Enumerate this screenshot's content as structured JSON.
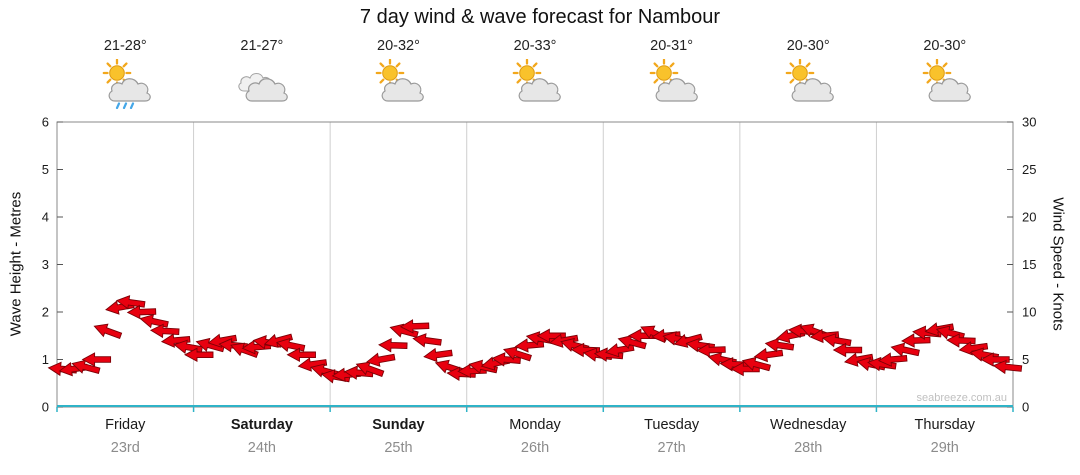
{
  "title": "7 day wind & wave forecast for Nambour",
  "watermark": "seabreeze.com.au",
  "days": [
    {
      "temp": "21-28°",
      "icon": "sun-cloud-rain",
      "name": "Friday",
      "date": "23rd",
      "bold": false
    },
    {
      "temp": "21-27°",
      "icon": "clouds",
      "name": "Saturday",
      "date": "24th",
      "bold": true
    },
    {
      "temp": "20-32°",
      "icon": "sun-cloud",
      "name": "Sunday",
      "date": "25th",
      "bold": true
    },
    {
      "temp": "20-33°",
      "icon": "sun-cloud",
      "name": "Monday",
      "date": "26th",
      "bold": false
    },
    {
      "temp": "20-31°",
      "icon": "sun-cloud",
      "name": "Tuesday",
      "date": "27th",
      "bold": false
    },
    {
      "temp": "20-30°",
      "icon": "sun-cloud",
      "name": "Wednesday",
      "date": "28th",
      "bold": false
    },
    {
      "temp": "20-30°",
      "icon": "sun-cloud",
      "name": "Thursday",
      "date": "29th",
      "bold": false
    }
  ],
  "chart_data": {
    "type": "line",
    "title": "7 day wind & wave forecast for Nambour",
    "x_categories_days": [
      "Friday",
      "Saturday",
      "Sunday",
      "Monday",
      "Tuesday",
      "Wednesday",
      "Thursday"
    ],
    "x_categories_dates": [
      "23rd",
      "24th",
      "25th",
      "26th",
      "27th",
      "28th",
      "29th"
    ],
    "left_axis": {
      "label": "Wave Height - Metres",
      "min": 0,
      "max": 6,
      "ticks": [
        0,
        1,
        2,
        3,
        4,
        5,
        6
      ]
    },
    "right_axis": {
      "label": "Wind Speed - Knots",
      "min": 0,
      "max": 30,
      "ticks": [
        0,
        5,
        10,
        15,
        20,
        25,
        30
      ]
    },
    "grid": "vertical-day-lines",
    "legend": "none",
    "series": [
      {
        "name": "Wave Height (m)",
        "type": "line",
        "color": "#2fb3c7",
        "x_days": [
          0,
          1,
          2,
          3,
          4,
          5,
          6,
          7
        ],
        "values": [
          0,
          0,
          0,
          0,
          0,
          0,
          0,
          0
        ]
      },
      {
        "name": "Wind Speed (knots)",
        "type": "wind-arrows",
        "color": "#e8000f",
        "point_format": [
          "day_offset",
          "knots",
          "direction_deg"
        ],
        "points": [
          [
            0.04,
            4,
            185
          ],
          [
            0.12,
            4,
            172
          ],
          [
            0.21,
            4.2,
            195
          ],
          [
            0.29,
            5,
            180
          ],
          [
            0.37,
            8,
            200
          ],
          [
            0.46,
            10.5,
            170
          ],
          [
            0.54,
            11,
            188
          ],
          [
            0.62,
            10,
            178
          ],
          [
            0.71,
            9,
            192
          ],
          [
            0.79,
            8,
            183
          ],
          [
            0.87,
            7,
            175
          ],
          [
            0.96,
            6.3,
            190
          ],
          [
            1.04,
            5.5,
            180
          ],
          [
            1.12,
            6.5,
            195
          ],
          [
            1.21,
            7,
            170
          ],
          [
            1.29,
            6.5,
            185
          ],
          [
            1.37,
            6,
            200
          ],
          [
            1.46,
            6.3,
            175
          ],
          [
            1.54,
            6.8,
            188
          ],
          [
            1.62,
            7,
            165
          ],
          [
            1.71,
            6.5,
            192
          ],
          [
            1.79,
            5.5,
            180
          ],
          [
            1.87,
            4.5,
            172
          ],
          [
            1.96,
            3.8,
            195
          ],
          [
            2.04,
            3.2,
            190
          ],
          [
            2.12,
            3.4,
            175
          ],
          [
            2.21,
            3.6,
            185
          ],
          [
            2.29,
            4,
            200
          ],
          [
            2.37,
            5,
            170
          ],
          [
            2.46,
            6.5,
            182
          ],
          [
            2.54,
            8,
            195
          ],
          [
            2.62,
            8.5,
            178
          ],
          [
            2.71,
            7,
            188
          ],
          [
            2.79,
            5.5,
            172
          ],
          [
            2.87,
            4.2,
            198
          ],
          [
            2.96,
            3.5,
            183
          ],
          [
            3.04,
            3.8,
            178
          ],
          [
            3.12,
            4.2,
            192
          ],
          [
            3.21,
            4.6,
            168
          ],
          [
            3.29,
            5,
            185
          ],
          [
            3.37,
            5.6,
            198
          ],
          [
            3.46,
            6.5,
            175
          ],
          [
            3.54,
            7.2,
            190
          ],
          [
            3.62,
            7.5,
            180
          ],
          [
            3.71,
            7,
            170
          ],
          [
            3.79,
            6.5,
            195
          ],
          [
            3.87,
            6,
            182
          ],
          [
            3.96,
            5.5,
            188
          ],
          [
            4.04,
            5.5,
            185
          ],
          [
            4.12,
            6,
            170
          ],
          [
            4.21,
            6.8,
            195
          ],
          [
            4.29,
            7.5,
            180
          ],
          [
            4.37,
            7.8,
            205
          ],
          [
            4.46,
            7.5,
            175
          ],
          [
            4.54,
            7.2,
            190
          ],
          [
            4.62,
            7,
            165
          ],
          [
            4.71,
            6.5,
            188
          ],
          [
            4.79,
            6,
            178
          ],
          [
            4.87,
            5,
            192
          ],
          [
            4.96,
            4.5,
            183
          ],
          [
            5.04,
            4,
            180
          ],
          [
            5.12,
            4.5,
            195
          ],
          [
            5.21,
            5.5,
            172
          ],
          [
            5.29,
            6.5,
            188
          ],
          [
            5.37,
            7.5,
            168
          ],
          [
            5.46,
            8,
            185
          ],
          [
            5.54,
            8,
            200
          ],
          [
            5.62,
            7.5,
            175
          ],
          [
            5.71,
            7,
            190
          ],
          [
            5.79,
            6,
            180
          ],
          [
            5.87,
            5,
            170
          ],
          [
            5.96,
            4.5,
            192
          ],
          [
            6.04,
            4.5,
            188
          ],
          [
            6.12,
            5,
            175
          ],
          [
            6.21,
            6,
            192
          ],
          [
            6.29,
            7,
            178
          ],
          [
            6.37,
            7.8,
            185
          ],
          [
            6.46,
            8.2,
            170
          ],
          [
            6.54,
            7.8,
            195
          ],
          [
            6.62,
            7,
            182
          ],
          [
            6.71,
            6.2,
            172
          ],
          [
            6.79,
            5.5,
            190
          ],
          [
            6.87,
            5,
            180
          ],
          [
            6.96,
            4.2,
            186
          ]
        ]
      }
    ]
  }
}
